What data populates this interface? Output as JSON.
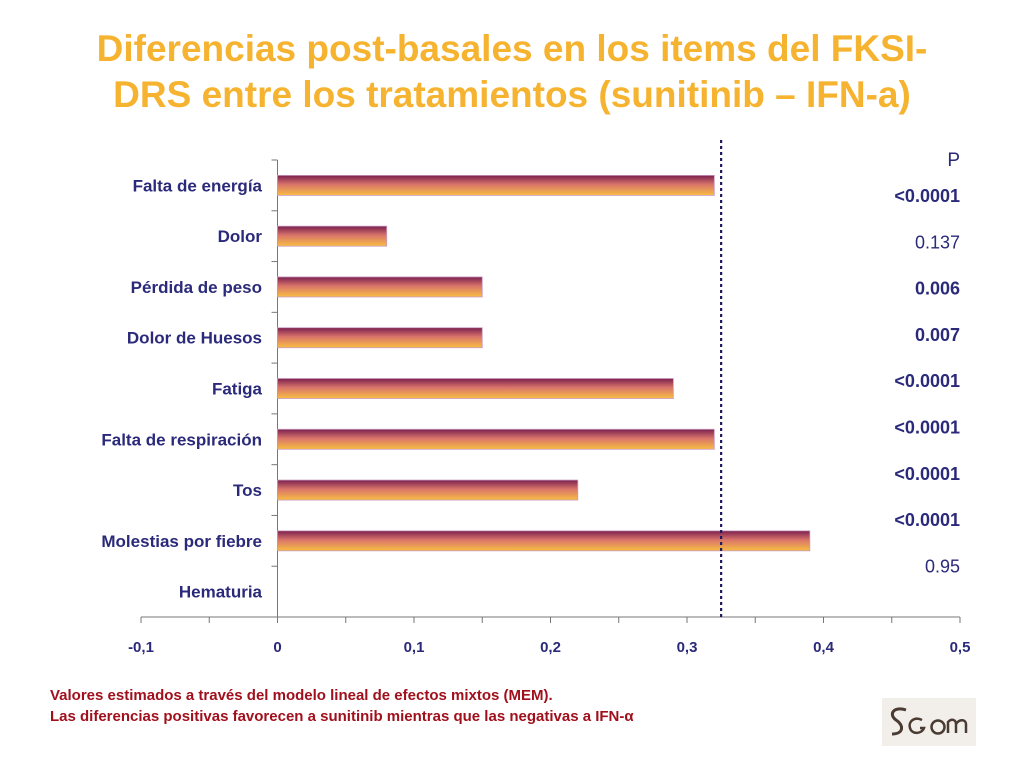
{
  "title": {
    "line1": "Diferencias post-basales en los items del FKSI-",
    "line2": "DRS entre los tratamientos (sunitinib – IFN-a)"
  },
  "chart_data": {
    "type": "bar",
    "orientation": "horizontal",
    "categories": [
      "Falta de energía",
      "Dolor",
      "Pérdida de peso",
      "Dolor de Huesos",
      "Fatiga",
      "Falta de respiración",
      "Tos",
      "Molestias por fiebre",
      "Hematuria"
    ],
    "values": [
      0.32,
      0.08,
      0.15,
      0.15,
      0.29,
      0.32,
      0.22,
      0.39,
      0
    ],
    "xlim": [
      -0.1,
      0.5
    ],
    "x_ticks": [
      "-0,1",
      "0",
      "0,1",
      "0,2",
      "0,3",
      "0,4",
      "0,5"
    ],
    "reference_line_x": 0.325,
    "p_header": "P",
    "p_values": [
      {
        "text": "<0.0001",
        "bold": true
      },
      {
        "text": "0.137",
        "bold": false
      },
      {
        "text": "0.006",
        "bold": true
      },
      {
        "text": "0.007",
        "bold": true
      },
      {
        "text": "<0.0001",
        "bold": true
      },
      {
        "text": "<0.0001",
        "bold": true
      },
      {
        "text": "<0.0001",
        "bold": true
      },
      {
        "text": "<0.0001",
        "bold": true
      },
      {
        "text": "0.95",
        "bold": false
      }
    ],
    "bar_colors": {
      "top": "#7A1F4E",
      "mid": "#D9746A",
      "bottom": "#F8BE42"
    },
    "text_color": "#2B2A7A"
  },
  "footnote": {
    "line1": "Valores estimados a través del modelo lineal de efectos mixtos (MEM).",
    "line2": "Las diferencias positivas favorecen a sunitinib mientras que las negativas a IFN-α"
  },
  "logo": {
    "text": "SGOM",
    "icon": "sgom-logo-icon"
  }
}
